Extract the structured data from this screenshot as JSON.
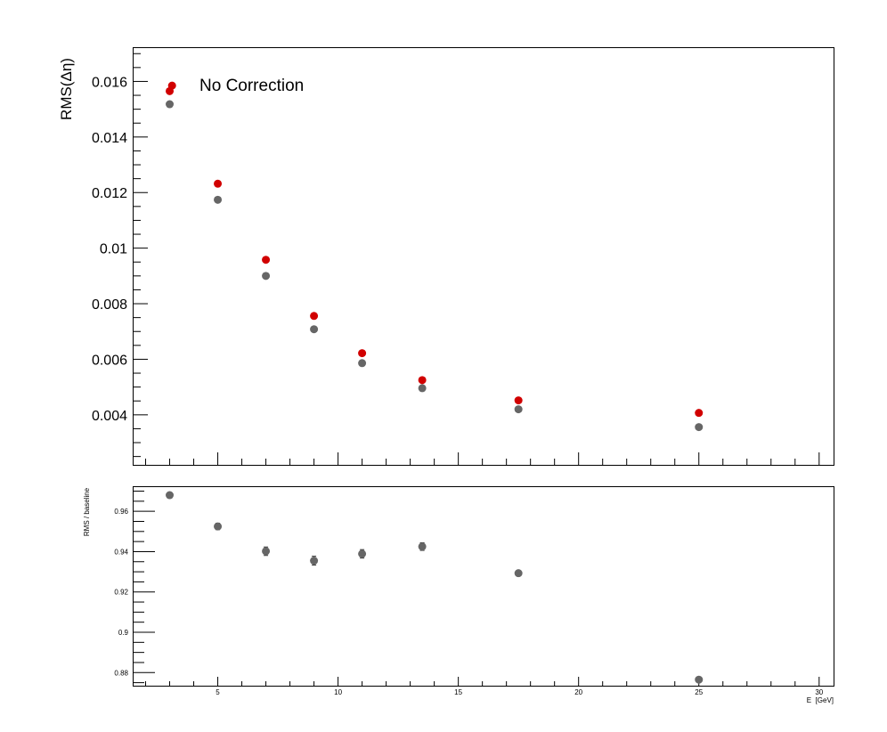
{
  "chart_data": [
    {
      "type": "scatter",
      "panel": "top",
      "title": "",
      "xlabel": "",
      "ylabel": "RMS(Δη)",
      "xlim": [
        1.5,
        30.6
      ],
      "ylim": [
        0.0022,
        0.0172
      ],
      "yticks": [
        0.004,
        0.006,
        0.008,
        0.01,
        0.012,
        0.014,
        0.016
      ],
      "ytick_labels": [
        "0.004",
        "0.006",
        "0.008",
        "0.01",
        "0.012",
        "0.014",
        "0.016"
      ],
      "legend": {
        "placement": "top-left",
        "label": "No Correction",
        "color": "#d10000"
      },
      "series": [
        {
          "name": "No Correction",
          "color": "#d10000",
          "x": [
            3,
            3.1,
            5,
            7,
            9,
            11,
            13.5,
            17.5,
            25
          ],
          "y": [
            0.01565,
            0.01585,
            0.01232,
            0.00958,
            0.00756,
            0.00622,
            0.00525,
            0.00452,
            0.00407
          ]
        },
        {
          "color": "#666666",
          "x": [
            3,
            5,
            7,
            9,
            11,
            13.5,
            17.5,
            25
          ],
          "y": [
            0.01518,
            0.01174,
            0.009,
            0.00708,
            0.00586,
            0.00496,
            0.0042,
            0.00356
          ]
        }
      ]
    },
    {
      "type": "scatter",
      "panel": "bottom",
      "title": "",
      "xlabel": "E  [GeV]",
      "ylabel": "RMS / baseline",
      "xlim": [
        1.5,
        30.6
      ],
      "ylim": [
        0.8735,
        0.972
      ],
      "xticks": [
        5,
        10,
        15,
        20,
        25,
        30
      ],
      "xtick_labels": [
        "5",
        "10",
        "15",
        "20",
        "25",
        "30"
      ],
      "yticks": [
        0.88,
        0.9,
        0.92,
        0.94,
        0.96
      ],
      "ytick_labels": [
        "0.88",
        "0.9",
        "0.92",
        "0.94",
        "0.96"
      ],
      "series": [
        {
          "color": "#666666",
          "x": [
            3,
            5,
            7,
            9,
            11,
            13.5,
            17.5,
            25
          ],
          "y": [
            0.968,
            0.9525,
            0.9402,
            0.9355,
            0.9389,
            0.9425,
            0.9293,
            0.8765
          ],
          "yerr": [
            0.0012,
            0.0016,
            0.0021,
            0.0022,
            0.0021,
            0.0019,
            0.0012,
            0.0008
          ]
        }
      ]
    }
  ]
}
